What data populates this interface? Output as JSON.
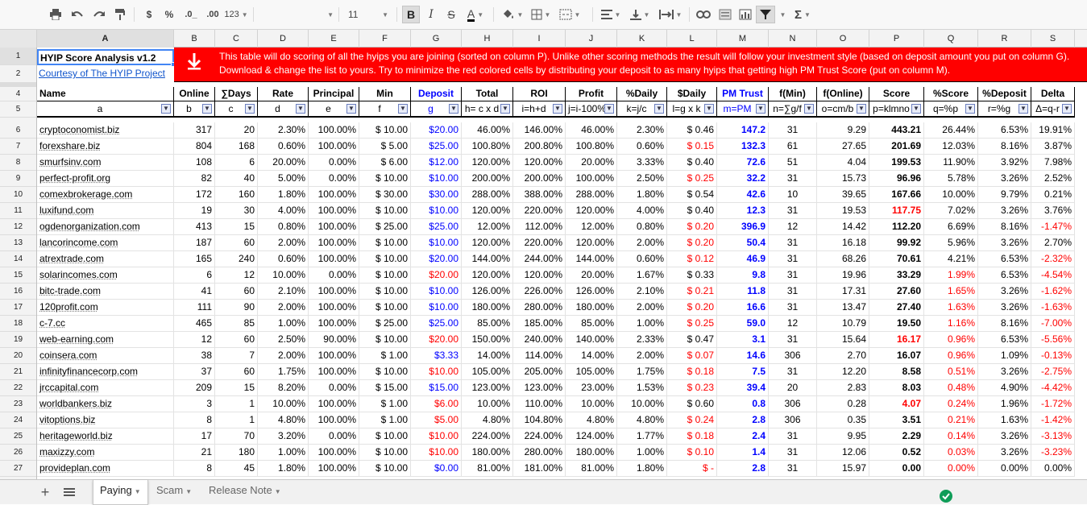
{
  "toolbar": {
    "currency": "$",
    "percent": "%",
    "dec_less": ".0_",
    "dec_more": ".00",
    "format_more": "123",
    "font_size": "11",
    "bold": "B",
    "italic": "I",
    "strike": "S",
    "text_color": "A",
    "sigma": "Σ"
  },
  "columns": [
    "A",
    "B",
    "C",
    "D",
    "E",
    "F",
    "G",
    "H",
    "I",
    "J",
    "K",
    "L",
    "M",
    "N",
    "O",
    "P",
    "Q",
    "R",
    "S"
  ],
  "row_numbers": [
    "1",
    "2",
    "4",
    "5",
    "6",
    "7",
    "8",
    "9",
    "10",
    "11",
    "12",
    "13",
    "14",
    "15",
    "16",
    "17",
    "18",
    "19",
    "20",
    "21",
    "22",
    "23",
    "24",
    "25",
    "26",
    "27"
  ],
  "title": "HYIP Score Analysis v1.2",
  "courtesy": "Courtesy of The HYIP Project",
  "banner": "This table will do scoring of all the hyips you are joining (sorted on column P).  Unlike other scoring methods the result will follow your investment style (based on deposit amount you put on column G). Download & change the list to yours. Try to minimize the red colored cells by distributing your deposit to as many hyips that getting high PM Trust Score (put on column M).",
  "header": [
    "Name",
    "Online",
    "∑Days",
    "Rate",
    "Principal",
    "Min",
    "Deposit",
    "Total",
    "ROI",
    "Profit",
    "%Daily",
    "$Daily",
    "PM Trust",
    "f(Min)",
    "f(Online)",
    "Score",
    "%Score",
    "%Deposit",
    "Delta"
  ],
  "formulas": [
    "a",
    "b",
    "c",
    "d",
    "e",
    "f",
    "g",
    "h= c x d",
    "i=h+d",
    "j=i-100%",
    "k=j/c",
    "l=g x k",
    "m=PM",
    "n=∑g/f",
    "o=cm/b",
    "p=klmno",
    "q=%p",
    "r=%g",
    "Δ=q-r"
  ],
  "rows": [
    {
      "cells": [
        "cryptoconomist.biz",
        "317",
        "20",
        "2.30%",
        "100.00%",
        "$ 10.00",
        "$20.00",
        "46.00%",
        "146.00%",
        "46.00%",
        "2.30%",
        "$ 0.46",
        "147.2",
        "31",
        "9.29",
        "443.21",
        "26.44%",
        "6.53%",
        "19.91%"
      ],
      "red": []
    },
    {
      "cells": [
        "forexshare.biz",
        "804",
        "168",
        "0.60%",
        "100.00%",
        "$ 5.00",
        "$25.00",
        "100.80%",
        "200.80%",
        "100.80%",
        "0.60%",
        "$ 0.15",
        "132.3",
        "61",
        "27.65",
        "201.69",
        "12.03%",
        "8.16%",
        "3.87%"
      ],
      "red": [
        11
      ]
    },
    {
      "cells": [
        "smurfsinv.com",
        "108",
        "6",
        "20.00%",
        "0.00%",
        "$ 6.00",
        "$12.00",
        "120.00%",
        "120.00%",
        "20.00%",
        "3.33%",
        "$ 0.40",
        "72.6",
        "51",
        "4.04",
        "199.53",
        "11.90%",
        "3.92%",
        "7.98%"
      ],
      "red": []
    },
    {
      "cells": [
        "perfect-profit.org",
        "82",
        "40",
        "5.00%",
        "0.00%",
        "$ 10.00",
        "$10.00",
        "200.00%",
        "200.00%",
        "100.00%",
        "2.50%",
        "$ 0.25",
        "32.2",
        "31",
        "15.73",
        "96.96",
        "5.78%",
        "3.26%",
        "2.52%"
      ],
      "red": [
        11
      ]
    },
    {
      "cells": [
        "comexbrokerage.com",
        "172",
        "160",
        "1.80%",
        "100.00%",
        "$ 30.00",
        "$30.00",
        "288.00%",
        "388.00%",
        "288.00%",
        "1.80%",
        "$ 0.54",
        "42.6",
        "10",
        "39.65",
        "167.66",
        "10.00%",
        "9.79%",
        "0.21%"
      ],
      "red": []
    },
    {
      "cells": [
        "luxifund.com",
        "19",
        "30",
        "4.00%",
        "100.00%",
        "$ 10.00",
        "$10.00",
        "120.00%",
        "220.00%",
        "120.00%",
        "4.00%",
        "$ 0.40",
        "12.3",
        "31",
        "19.53",
        "117.75",
        "7.02%",
        "3.26%",
        "3.76%"
      ],
      "red": [
        15
      ]
    },
    {
      "cells": [
        "ogdenorganization.com",
        "413",
        "15",
        "0.80%",
        "100.00%",
        "$ 25.00",
        "$25.00",
        "12.00%",
        "112.00%",
        "12.00%",
        "0.80%",
        "$ 0.20",
        "396.9",
        "12",
        "14.42",
        "112.20",
        "6.69%",
        "8.16%",
        "-1.47%"
      ],
      "red": [
        11,
        18
      ]
    },
    {
      "cells": [
        "lancorincome.com",
        "187",
        "60",
        "2.00%",
        "100.00%",
        "$ 10.00",
        "$10.00",
        "120.00%",
        "220.00%",
        "120.00%",
        "2.00%",
        "$ 0.20",
        "50.4",
        "31",
        "16.18",
        "99.92",
        "5.96%",
        "3.26%",
        "2.70%"
      ],
      "red": [
        11
      ]
    },
    {
      "cells": [
        "atrextrade.com",
        "165",
        "240",
        "0.60%",
        "100.00%",
        "$ 10.00",
        "$20.00",
        "144.00%",
        "244.00%",
        "144.00%",
        "0.60%",
        "$ 0.12",
        "46.9",
        "31",
        "68.26",
        "70.61",
        "4.21%",
        "6.53%",
        "-2.32%"
      ],
      "red": [
        11,
        18
      ]
    },
    {
      "cells": [
        "solarincomes.com",
        "6",
        "12",
        "10.00%",
        "0.00%",
        "$ 10.00",
        "$20.00",
        "120.00%",
        "120.00%",
        "20.00%",
        "1.67%",
        "$ 0.33",
        "9.8",
        "31",
        "19.96",
        "33.29",
        "1.99%",
        "6.53%",
        "-4.54%"
      ],
      "red": [
        6,
        16,
        18
      ]
    },
    {
      "cells": [
        "bitc-trade.com",
        "41",
        "60",
        "2.10%",
        "100.00%",
        "$ 10.00",
        "$10.00",
        "126.00%",
        "226.00%",
        "126.00%",
        "2.10%",
        "$ 0.21",
        "11.8",
        "31",
        "17.31",
        "27.60",
        "1.65%",
        "3.26%",
        "-1.62%"
      ],
      "red": [
        11,
        16,
        18
      ]
    },
    {
      "cells": [
        "120profit.com",
        "111",
        "90",
        "2.00%",
        "100.00%",
        "$ 10.00",
        "$10.00",
        "180.00%",
        "280.00%",
        "180.00%",
        "2.00%",
        "$ 0.20",
        "16.6",
        "31",
        "13.47",
        "27.40",
        "1.63%",
        "3.26%",
        "-1.63%"
      ],
      "red": [
        11,
        16,
        18
      ]
    },
    {
      "cells": [
        "c-7.cc",
        "465",
        "85",
        "1.00%",
        "100.00%",
        "$ 25.00",
        "$25.00",
        "85.00%",
        "185.00%",
        "85.00%",
        "1.00%",
        "$ 0.25",
        "59.0",
        "12",
        "10.79",
        "19.50",
        "1.16%",
        "8.16%",
        "-7.00%"
      ],
      "red": [
        11,
        16,
        18
      ]
    },
    {
      "cells": [
        "web-earning.com",
        "12",
        "60",
        "2.50%",
        "90.00%",
        "$ 10.00",
        "$20.00",
        "150.00%",
        "240.00%",
        "140.00%",
        "2.33%",
        "$ 0.47",
        "3.1",
        "31",
        "15.64",
        "16.17",
        "0.96%",
        "6.53%",
        "-5.56%"
      ],
      "red": [
        6,
        15,
        16,
        18
      ]
    },
    {
      "cells": [
        "coinsera.com",
        "38",
        "7",
        "2.00%",
        "100.00%",
        "$ 1.00",
        "$3.33",
        "14.00%",
        "114.00%",
        "14.00%",
        "2.00%",
        "$ 0.07",
        "14.6",
        "306",
        "2.70",
        "16.07",
        "0.96%",
        "1.09%",
        "-0.13%"
      ],
      "red": [
        11,
        16,
        18
      ]
    },
    {
      "cells": [
        "infinityfinancecorp.com",
        "37",
        "60",
        "1.75%",
        "100.00%",
        "$ 10.00",
        "$10.00",
        "105.00%",
        "205.00%",
        "105.00%",
        "1.75%",
        "$ 0.18",
        "7.5",
        "31",
        "12.20",
        "8.58",
        "0.51%",
        "3.26%",
        "-2.75%"
      ],
      "red": [
        6,
        11,
        16,
        18
      ]
    },
    {
      "cells": [
        "jrccapital.com",
        "209",
        "15",
        "8.20%",
        "0.00%",
        "$ 15.00",
        "$15.00",
        "123.00%",
        "123.00%",
        "23.00%",
        "1.53%",
        "$ 0.23",
        "39.4",
        "20",
        "2.83",
        "8.03",
        "0.48%",
        "4.90%",
        "-4.42%"
      ],
      "red": [
        11,
        16,
        18
      ]
    },
    {
      "cells": [
        "worldbankers.biz",
        "3",
        "1",
        "10.00%",
        "100.00%",
        "$ 1.00",
        "$6.00",
        "10.00%",
        "110.00%",
        "10.00%",
        "10.00%",
        "$ 0.60",
        "0.8",
        "306",
        "0.28",
        "4.07",
        "0.24%",
        "1.96%",
        "-1.72%"
      ],
      "red": [
        6,
        15,
        16,
        18
      ]
    },
    {
      "cells": [
        "vitoptions.biz",
        "8",
        "1",
        "4.80%",
        "100.00%",
        "$ 1.00",
        "$5.00",
        "4.80%",
        "104.80%",
        "4.80%",
        "4.80%",
        "$ 0.24",
        "2.8",
        "306",
        "0.35",
        "3.51",
        "0.21%",
        "1.63%",
        "-1.42%"
      ],
      "red": [
        6,
        11,
        16,
        18
      ]
    },
    {
      "cells": [
        "heritageworld.biz",
        "17",
        "70",
        "3.20%",
        "0.00%",
        "$ 10.00",
        "$10.00",
        "224.00%",
        "224.00%",
        "124.00%",
        "1.77%",
        "$ 0.18",
        "2.4",
        "31",
        "9.95",
        "2.29",
        "0.14%",
        "3.26%",
        "-3.13%"
      ],
      "red": [
        6,
        11,
        16,
        18
      ]
    },
    {
      "cells": [
        "maxizzy.com",
        "21",
        "180",
        "1.00%",
        "100.00%",
        "$ 10.00",
        "$10.00",
        "180.00%",
        "280.00%",
        "180.00%",
        "1.00%",
        "$ 0.10",
        "1.4",
        "31",
        "12.06",
        "0.52",
        "0.03%",
        "3.26%",
        "-3.23%"
      ],
      "red": [
        6,
        11,
        16,
        18
      ]
    },
    {
      "cells": [
        "provideplan.com",
        "8",
        "45",
        "1.80%",
        "100.00%",
        "$ 10.00",
        "$0.00",
        "81.00%",
        "181.00%",
        "81.00%",
        "1.80%",
        "$ -",
        "2.8",
        "31",
        "15.97",
        "0.00",
        "0.00%",
        "0.00%",
        "0.00%"
      ],
      "red": [
        11,
        16
      ]
    }
  ],
  "tabs": [
    "Paying",
    "Scam",
    "Release Note"
  ]
}
